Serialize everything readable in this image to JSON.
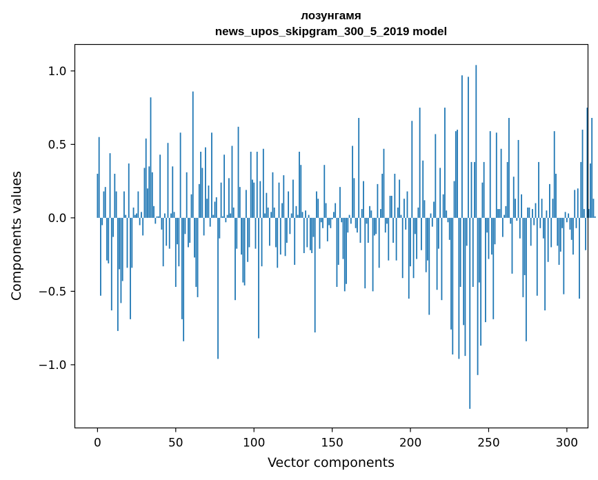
{
  "chart_data": {
    "type": "bar",
    "title_line1": "лозунгамя",
    "title_line2": "news_upos_skipgram_300_5_2019 model",
    "xlabel": "Vector components",
    "ylabel": "Components values",
    "xlim": [
      -14.5,
      313.5
    ],
    "ylim": [
      -1.43,
      1.18
    ],
    "xticks": [
      0,
      50,
      100,
      150,
      200,
      250,
      300
    ],
    "xtick_labels": [
      "0",
      "50",
      "100",
      "150",
      "200",
      "250",
      "300"
    ],
    "yticks": [
      -1.0,
      -0.5,
      0.0,
      0.5,
      1.0
    ],
    "ytick_labels": [
      "−1.0",
      "−0.5",
      "0.0",
      "0.5",
      "1.0"
    ],
    "bar_color": "#1f77b4",
    "grid": false,
    "values": [
      0.3,
      0.55,
      -0.53,
      -0.05,
      0.18,
      0.21,
      -0.29,
      -0.31,
      0.44,
      -0.63,
      -0.13,
      0.3,
      0.18,
      -0.77,
      -0.35,
      -0.58,
      -0.43,
      0.18,
      0.02,
      -0.34,
      0.37,
      -0.69,
      -0.34,
      0.07,
      0.02,
      0.03,
      0.18,
      -0.05,
      0.04,
      -0.12,
      0.34,
      0.54,
      0.2,
      0.35,
      0.82,
      0.31,
      0.08,
      -0.04,
      0.01,
      0.01,
      0.43,
      -0.08,
      -0.33,
      0.03,
      -0.19,
      0.51,
      -0.21,
      0.03,
      0.35,
      0.04,
      -0.47,
      -0.18,
      -0.33,
      0.58,
      -0.69,
      -0.84,
      -0.11,
      0.31,
      -0.2,
      -0.17,
      0.16,
      0.86,
      -0.27,
      -0.47,
      -0.54,
      0.23,
      0.45,
      0.34,
      -0.12,
      0.48,
      0.13,
      0.22,
      -0.06,
      0.58,
      0.02,
      0.11,
      0.14,
      -0.96,
      -0.14,
      0.24,
      0.01,
      0.43,
      -0.03,
      0.02,
      0.27,
      0.03,
      0.49,
      0.07,
      -0.56,
      -0.21,
      0.62,
      0.21,
      -0.25,
      -0.44,
      -0.46,
      0.19,
      -0.3,
      -0.2,
      0.45,
      0.26,
      0.24,
      -0.21,
      0.45,
      -0.82,
      0.25,
      -0.33,
      0.47,
      0.03,
      0.17,
      0.07,
      -0.19,
      0.04,
      0.31,
      0.07,
      -0.2,
      -0.34,
      0.24,
      -0.25,
      0.1,
      0.29,
      -0.26,
      -0.17,
      0.18,
      -0.11,
      0.03,
      0.26,
      -0.32,
      0.08,
      0.02,
      0.45,
      0.36,
      0.04,
      -0.24,
      0.05,
      -0.2,
      0.02,
      -0.22,
      -0.24,
      -0.13,
      -0.78,
      0.18,
      0.13,
      -0.21,
      -0.03,
      -0.07,
      0.36,
      0.1,
      -0.16,
      -0.05,
      -0.07,
      -0.01,
      0.04,
      0.1,
      -0.47,
      -0.32,
      0.21,
      -0.03,
      -0.28,
      -0.5,
      -0.45,
      -0.1,
      0.02,
      -0.04,
      0.49,
      0.27,
      -0.07,
      -0.1,
      0.68,
      -0.17,
      0.06,
      0.25,
      -0.48,
      -0.04,
      -0.17,
      0.08,
      0.05,
      -0.5,
      -0.12,
      -0.11,
      0.23,
      -0.34,
      0.06,
      0.3,
      0.47,
      -0.1,
      -0.04,
      -0.29,
      0.15,
      0.15,
      -0.17,
      0.3,
      -0.29,
      0.07,
      0.26,
      0.02,
      -0.41,
      0.13,
      -0.08,
      0.18,
      -0.55,
      -0.33,
      0.66,
      -0.41,
      -0.11,
      -0.28,
      0.07,
      0.75,
      -0.22,
      0.39,
      0.12,
      -0.37,
      -0.29,
      -0.66,
      0.03,
      -0.06,
      0.11,
      0.57,
      -0.49,
      -0.21,
      0.34,
      -0.56,
      0.16,
      0.75,
      0.05,
      -0.03,
      -0.15,
      -0.76,
      -0.93,
      0.25,
      0.59,
      0.6,
      -0.96,
      -0.47,
      0.97,
      -0.73,
      -0.94,
      -0.19,
      0.96,
      -1.3,
      0.38,
      -0.47,
      0.38,
      1.04,
      -1.07,
      -0.44,
      -0.87,
      0.24,
      0.38,
      -0.71,
      -0.1,
      -0.28,
      0.59,
      -0.25,
      -0.69,
      -0.18,
      0.58,
      0.06,
      0.06,
      0.47,
      -0.13,
      0.02,
      0.08,
      0.38,
      0.68,
      -0.04,
      -0.38,
      0.28,
      0.13,
      -0.02,
      0.53,
      -0.14,
      0.16,
      -0.54,
      -0.39,
      -0.84,
      0.07,
      0.07,
      -0.19,
      0.06,
      -0.05,
      0.1,
      -0.53,
      0.38,
      -0.07,
      0.13,
      -0.14,
      -0.63,
      0.05,
      -0.3,
      0.23,
      -0.2,
      0.13,
      0.59,
      0.3,
      -0.19,
      -0.32,
      -0.23,
      -0.07,
      -0.52,
      0.04,
      -0.03,
      0.03,
      -0.08,
      -0.15,
      -0.25,
      0.19,
      -0.07,
      0.2,
      -0.55,
      0.38,
      0.6,
      0.06,
      -0.22,
      0.75,
      0.06,
      0.37,
      0.68,
      0.13,
      0.01
    ]
  }
}
